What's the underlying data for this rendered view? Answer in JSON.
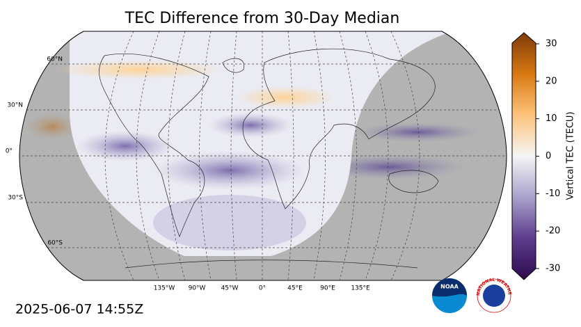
{
  "title": "TEC Difference from 30-Day Median",
  "map": {
    "lat_labels": [
      "60°N",
      "30°N",
      "0°",
      "30°S",
      "60°S"
    ],
    "lon_labels": [
      "135°W",
      "90°W",
      "45°W",
      "0°",
      "45°E",
      "90°E",
      "135°E"
    ]
  },
  "colorbar": {
    "label": "Vertical TEC (TECU)",
    "lim": [
      -30,
      30
    ],
    "ticks": [
      30,
      20,
      10,
      0,
      -10,
      -20,
      -30
    ]
  },
  "timestamp": "2025-06-07 14:55Z",
  "logos": {
    "noaa": "NOAA",
    "nws": "NATIONAL WEATHER SERVICE"
  }
}
